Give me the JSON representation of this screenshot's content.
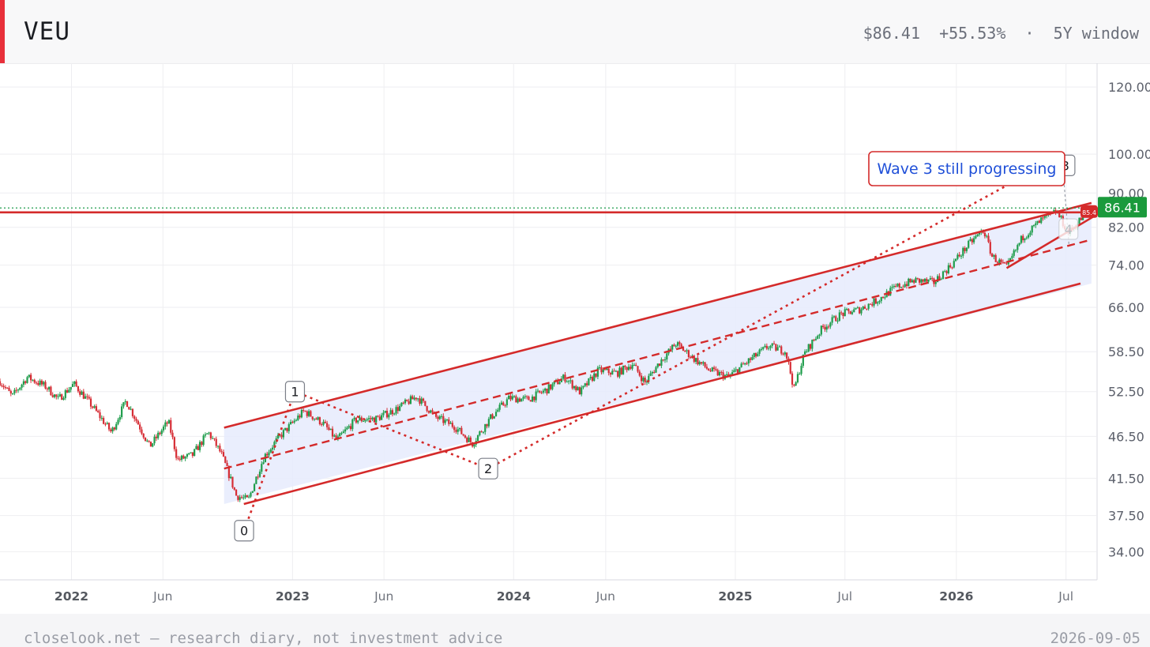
{
  "header": {
    "ticker": "VEU",
    "price": "$86.41",
    "change": "+55.53%",
    "separator": "·",
    "window": "5Y window"
  },
  "footer": {
    "note": "closelook.net — research diary, not investment advice",
    "date": "2026-09-05"
  },
  "colors": {
    "accent": "#e8303a",
    "up": "#1f9d4c",
    "down": "#d62d35",
    "annotation": "#d42a2a",
    "channel_fill": "#e6ebfd",
    "price_tag": "#1a9a3c",
    "callout_text": "#1f4fd8"
  },
  "chart_data": {
    "type": "candlestick",
    "title": "",
    "y_scale": "log",
    "ylim": [
      31.5,
      128
    ],
    "xlim": [
      "2021-09-05",
      "2026-08-20"
    ],
    "y_ticks": [
      "120.00",
      "100.00",
      "90.00",
      "82.00",
      "74.00",
      "66.00",
      "58.50",
      "52.50",
      "46.50",
      "41.50",
      "37.50",
      "34.00"
    ],
    "x_ticks": [
      {
        "date": "2022-01-01",
        "label": "2022",
        "major": true
      },
      {
        "date": "2022-06-01",
        "label": "Jun",
        "major": false
      },
      {
        "date": "2023-01-01",
        "label": "2023",
        "major": true
      },
      {
        "date": "2023-06-01",
        "label": "Jun",
        "major": false
      },
      {
        "date": "2024-01-01",
        "label": "2024",
        "major": true
      },
      {
        "date": "2024-06-01",
        "label": "Jun",
        "major": false
      },
      {
        "date": "2025-01-01",
        "label": "2025",
        "major": true
      },
      {
        "date": "2025-07-01",
        "label": "Jul",
        "major": false
      },
      {
        "date": "2026-01-01",
        "label": "2026",
        "major": true
      },
      {
        "date": "2026-07-01",
        "label": "Jul",
        "major": false
      }
    ],
    "price_path": [
      [
        "2021-09-05",
        54.0
      ],
      [
        "2021-09-25",
        51.8
      ],
      [
        "2021-10-20",
        54.6
      ],
      [
        "2021-11-20",
        53.2
      ],
      [
        "2021-12-10",
        51.4
      ],
      [
        "2022-01-05",
        53.6
      ],
      [
        "2022-02-01",
        50.8
      ],
      [
        "2022-03-08",
        47.0
      ],
      [
        "2022-04-01",
        51.2
      ],
      [
        "2022-05-10",
        45.2
      ],
      [
        "2022-06-10",
        48.4
      ],
      [
        "2022-06-25",
        43.6
      ],
      [
        "2022-07-20",
        44.2
      ],
      [
        "2022-08-15",
        47.0
      ],
      [
        "2022-09-05",
        44.4
      ],
      [
        "2022-09-30",
        39.6
      ],
      [
        "2022-10-20",
        39.1
      ],
      [
        "2022-11-15",
        44.0
      ],
      [
        "2022-12-10",
        46.4
      ],
      [
        "2023-01-20",
        49.8
      ],
      [
        "2023-02-20",
        48.2
      ],
      [
        "2023-03-15",
        46.0
      ],
      [
        "2023-04-15",
        48.6
      ],
      [
        "2023-05-20",
        48.8
      ],
      [
        "2023-06-20",
        50.0
      ],
      [
        "2023-07-25",
        51.8
      ],
      [
        "2023-08-25",
        49.0
      ],
      [
        "2023-09-25",
        47.8
      ],
      [
        "2023-10-25",
        45.6
      ],
      [
        "2023-11-25",
        49.0
      ],
      [
        "2023-12-25",
        51.6
      ],
      [
        "2024-01-25",
        51.4
      ],
      [
        "2024-02-25",
        52.8
      ],
      [
        "2024-03-25",
        54.6
      ],
      [
        "2024-04-20",
        52.4
      ],
      [
        "2024-05-20",
        55.6
      ],
      [
        "2024-06-20",
        55.2
      ],
      [
        "2024-07-15",
        56.6
      ],
      [
        "2024-08-05",
        53.8
      ],
      [
        "2024-09-01",
        57.2
      ],
      [
        "2024-09-25",
        59.8
      ],
      [
        "2024-10-25",
        57.4
      ],
      [
        "2024-11-20",
        55.6
      ],
      [
        "2024-12-20",
        54.6
      ],
      [
        "2025-01-25",
        57.2
      ],
      [
        "2025-02-25",
        59.4
      ],
      [
        "2025-03-25",
        58.6
      ],
      [
        "2025-04-08",
        52.8
      ],
      [
        "2025-04-25",
        58.2
      ],
      [
        "2025-05-25",
        62.4
      ],
      [
        "2025-06-25",
        64.8
      ],
      [
        "2025-07-25",
        65.6
      ],
      [
        "2025-08-25",
        67.4
      ],
      [
        "2025-09-25",
        69.8
      ],
      [
        "2025-10-25",
        71.0
      ],
      [
        "2025-11-25",
        70.6
      ],
      [
        "2025-12-25",
        74.2
      ],
      [
        "2026-01-25",
        78.8
      ],
      [
        "2026-02-15",
        81.4
      ],
      [
        "2026-03-01",
        75.8
      ],
      [
        "2026-03-25",
        73.4
      ],
      [
        "2026-04-20",
        79.8
      ],
      [
        "2026-05-20",
        83.4
      ],
      [
        "2026-06-15",
        85.6
      ],
      [
        "2026-07-05",
        80.8
      ],
      [
        "2026-07-25",
        83.8
      ],
      [
        "2026-08-15",
        86.41
      ]
    ],
    "channel": {
      "start": "2022-09-10",
      "end": "2026-08-12",
      "upper": [
        47.6,
        87.6
      ],
      "middle": [
        42.6,
        79.3
      ],
      "lower": [
        38.7,
        70.4
      ]
    },
    "resistance_level": 85.4,
    "current_price": 86.41,
    "current_price_label": "86.41",
    "secondary_tag_label": "85.4",
    "waves": [
      {
        "label": "0",
        "date": "2022-10-13",
        "value": 36.0
      },
      {
        "label": "1",
        "date": "2023-01-05",
        "value": 52.5
      },
      {
        "label": "2",
        "date": "2023-11-20",
        "value": 42.6
      },
      {
        "label": "3",
        "date": "2026-06-30",
        "value": 97.0
      },
      {
        "label": "4",
        "date": "2026-07-05",
        "value": 81.6
      }
    ],
    "wave_path": [
      [
        "2022-10-13",
        36.0
      ],
      [
        "2023-01-05",
        52.5
      ],
      [
        "2023-11-20",
        42.6
      ],
      [
        "2026-04-20",
        94.0
      ]
    ],
    "wave3_guides": [
      [
        "2026-06-28",
        92.0
      ],
      [
        "2026-07-06",
        78.0
      ]
    ],
    "wave4_line": [
      [
        "2026-03-25",
        73.4
      ],
      [
        "2026-08-20",
        84.8
      ]
    ],
    "annotation": "Wave 3 still progressing",
    "grid": true,
    "legend": "none"
  }
}
